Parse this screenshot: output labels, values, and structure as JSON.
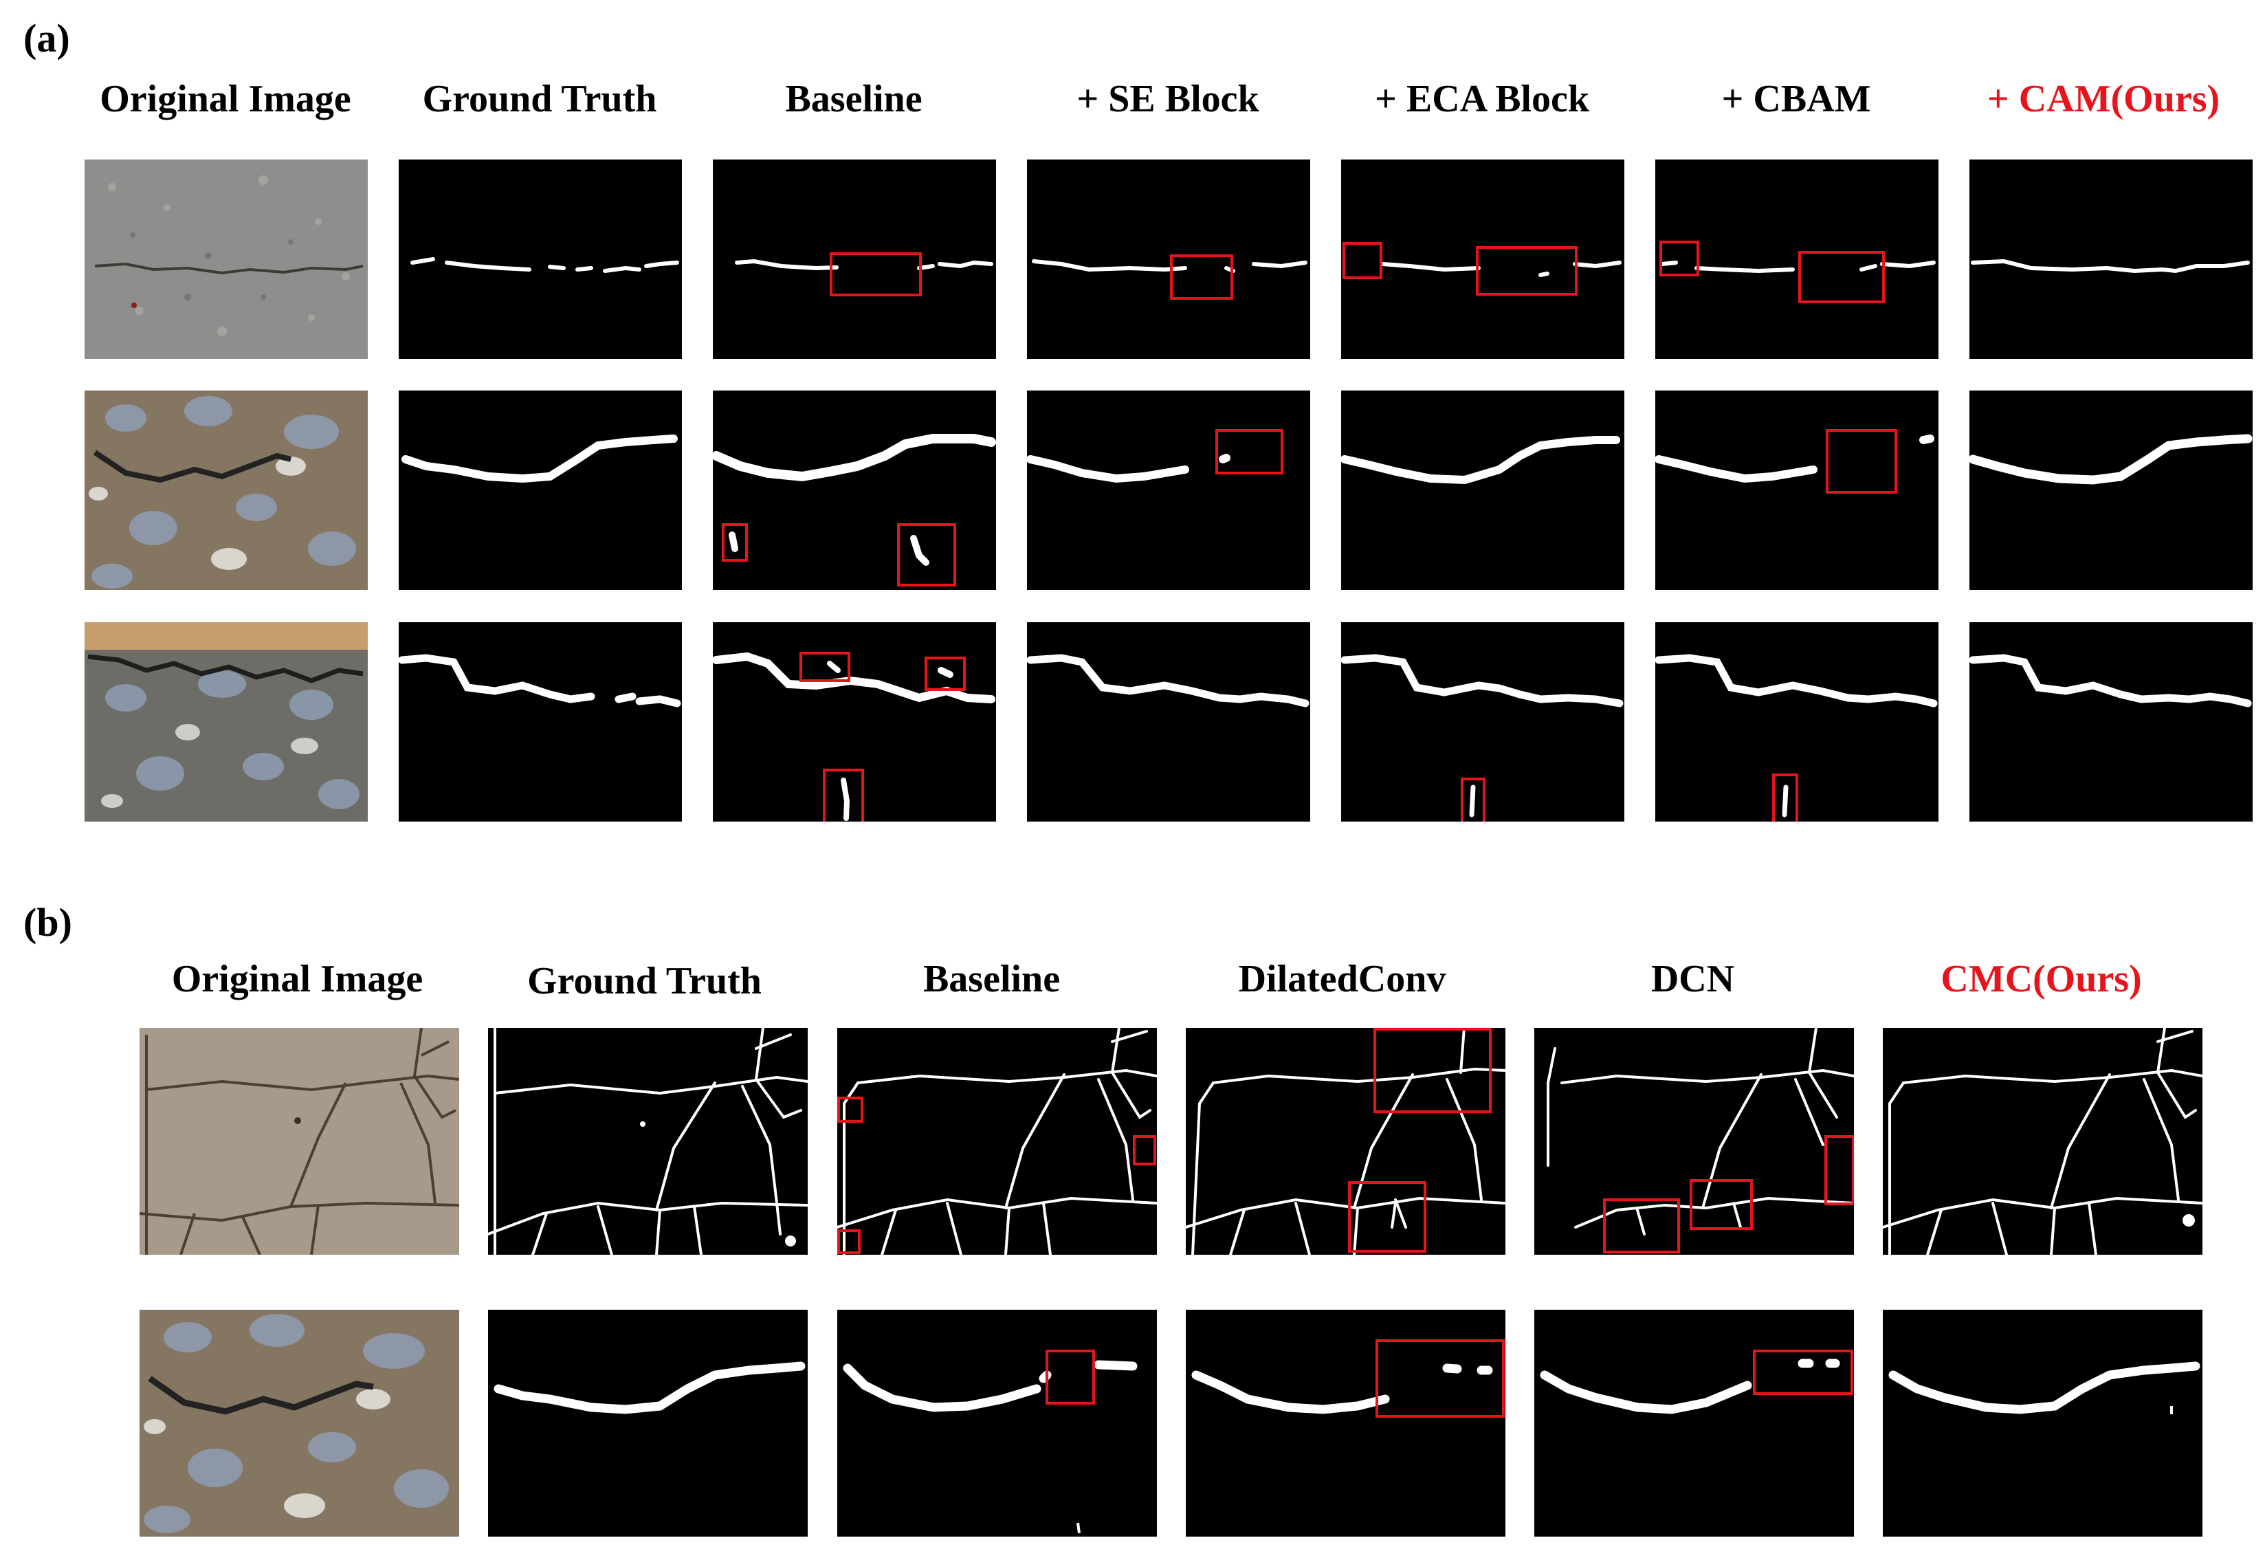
{
  "panel_a": {
    "label": "(a)",
    "headers": [
      "Original Image",
      "Ground Truth",
      "Baseline",
      "+ SE Block",
      "+ ECA Block",
      "+ CBAM",
      "+ CAM(Ours)"
    ]
  },
  "panel_b": {
    "label": "(b)",
    "headers": [
      "Original Image",
      "Ground Truth",
      "Baseline",
      "DilatedConv",
      "DCN",
      "CMC(Ours)"
    ]
  },
  "colors": {
    "highlight_box": "#e8141c",
    "ours_header": "#e8141c",
    "crack": "#ffffff",
    "background": "#000000"
  }
}
